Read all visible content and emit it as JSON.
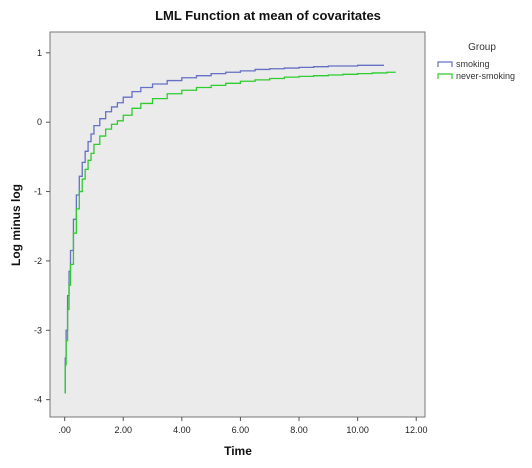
{
  "chart_data": {
    "type": "line",
    "title": "LML  Function at mean of covaritates",
    "xlabel": "Time",
    "ylabel": "Log minus log",
    "xlim": [
      -0.5,
      12.3
    ],
    "ylim": [
      -4.25,
      1.3
    ],
    "x_ticks": [
      0,
      2,
      4,
      6,
      8,
      10,
      12
    ],
    "x_tick_labels": [
      ".00",
      "2.00",
      "4.00",
      "6.00",
      "8.00",
      "10.00",
      "12.00"
    ],
    "y_ticks": [
      1,
      0,
      -1,
      -2,
      -3,
      -4
    ],
    "y_tick_labels": [
      "1",
      "0",
      "-1",
      "-2",
      "-3",
      "-4"
    ],
    "grid": false,
    "plot_background": "#ebebeb",
    "legend": {
      "title": "Group",
      "position": "top-right-outside"
    },
    "series": [
      {
        "name": "smoking",
        "color": "#6470c4",
        "x": [
          0.0,
          0.02,
          0.05,
          0.1,
          0.15,
          0.2,
          0.3,
          0.4,
          0.5,
          0.6,
          0.7,
          0.8,
          0.9,
          1.0,
          1.2,
          1.4,
          1.6,
          1.8,
          2.0,
          2.3,
          2.6,
          3.0,
          3.5,
          4.0,
          4.5,
          5.0,
          5.5,
          6.0,
          6.5,
          7.0,
          7.5,
          8.0,
          8.5,
          9.0,
          9.5,
          10.0,
          10.5,
          10.9
        ],
        "values": [
          -3.9,
          -3.4,
          -3.0,
          -2.5,
          -2.15,
          -1.85,
          -1.4,
          -1.05,
          -0.78,
          -0.58,
          -0.42,
          -0.28,
          -0.17,
          -0.05,
          0.05,
          0.15,
          0.22,
          0.28,
          0.36,
          0.44,
          0.5,
          0.55,
          0.6,
          0.64,
          0.67,
          0.7,
          0.72,
          0.74,
          0.76,
          0.77,
          0.78,
          0.79,
          0.8,
          0.81,
          0.81,
          0.82,
          0.82,
          0.82
        ]
      },
      {
        "name": "never-smoking",
        "color": "#2ecc2e",
        "x": [
          0.0,
          0.02,
          0.05,
          0.1,
          0.15,
          0.2,
          0.3,
          0.4,
          0.5,
          0.6,
          0.7,
          0.8,
          0.9,
          1.0,
          1.2,
          1.4,
          1.6,
          1.8,
          2.0,
          2.3,
          2.6,
          3.0,
          3.5,
          4.0,
          4.5,
          5.0,
          5.5,
          6.0,
          6.5,
          7.0,
          7.5,
          8.0,
          8.5,
          9.0,
          9.5,
          10.0,
          10.5,
          11.0,
          11.3
        ],
        "values": [
          -3.9,
          -3.5,
          -3.15,
          -2.7,
          -2.35,
          -2.05,
          -1.6,
          -1.25,
          -1.0,
          -0.82,
          -0.68,
          -0.55,
          -0.45,
          -0.32,
          -0.2,
          -0.1,
          -0.03,
          0.02,
          0.1,
          0.2,
          0.27,
          0.34,
          0.41,
          0.46,
          0.5,
          0.53,
          0.56,
          0.59,
          0.61,
          0.63,
          0.65,
          0.66,
          0.67,
          0.68,
          0.69,
          0.7,
          0.71,
          0.72,
          0.72
        ]
      }
    ]
  }
}
